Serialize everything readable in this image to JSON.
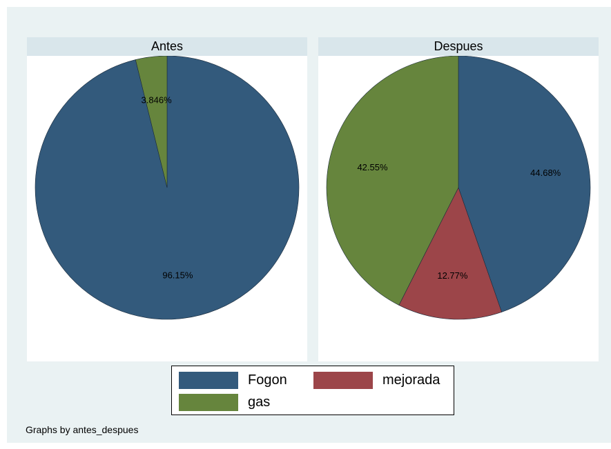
{
  "chart_data": {
    "type": "pie",
    "note": "Graphs by antes_despues",
    "legend": [
      {
        "label": "Fogon",
        "color": "#335a7c"
      },
      {
        "label": "mejorada",
        "color": "#9c4549"
      },
      {
        "label": "gas",
        "color": "#66853d"
      }
    ],
    "panels": [
      {
        "title": "Antes",
        "slices": [
          {
            "category": "Fogon",
            "value": 96.15,
            "label": "96.15%",
            "color": "#335a7c"
          },
          {
            "category": "gas",
            "value": 3.846,
            "label": "3.846%",
            "color": "#66853d"
          }
        ]
      },
      {
        "title": "Despues",
        "slices": [
          {
            "category": "Fogon",
            "value": 44.68,
            "label": "44.68%",
            "color": "#335a7c"
          },
          {
            "category": "mejorada",
            "value": 12.77,
            "label": "12.77%",
            "color": "#9c4549"
          },
          {
            "category": "gas",
            "value": 42.55,
            "label": "42.55%",
            "color": "#66853d"
          }
        ]
      }
    ]
  }
}
